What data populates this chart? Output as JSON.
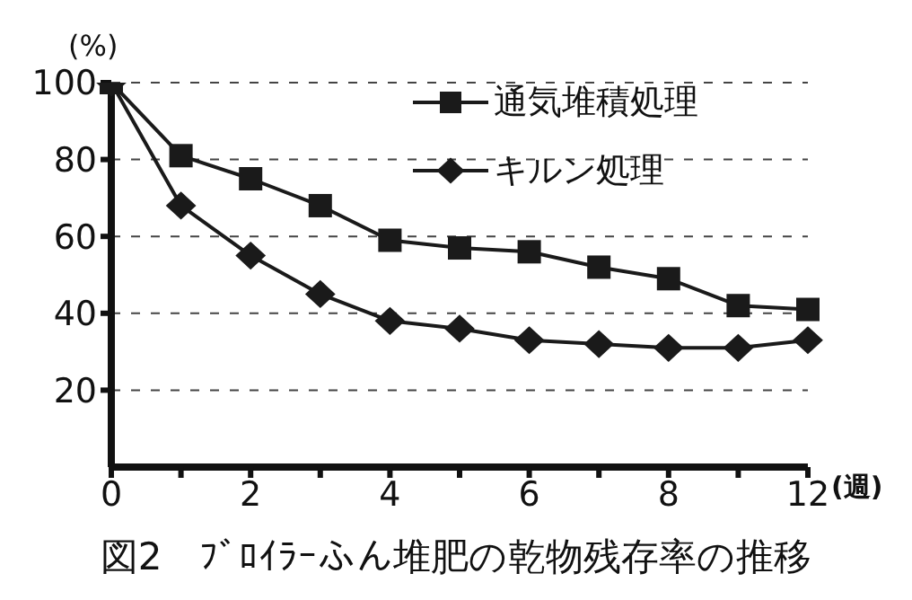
{
  "chart_data": {
    "type": "line",
    "title": "図2　ﾌﾞﾛｲﾗｰふん堆肥の乾物残存率の推移",
    "ylabel": "(%)",
    "xlabel": "(週)",
    "categories": [
      "0",
      null,
      "2",
      null,
      "4",
      null,
      "6",
      null,
      "8",
      null,
      "12"
    ],
    "series": [
      {
        "name": "通気堆積処理",
        "color": "#1a1a1a",
        "marker": "square",
        "values": [
          100,
          81,
          75,
          68,
          59,
          57,
          56,
          52,
          49,
          42,
          41
        ]
      },
      {
        "name": "キルン処理",
        "color": "#1a1a1a",
        "marker": "diamond",
        "values": [
          100,
          68,
          55,
          45,
          38,
          36,
          33,
          32,
          31,
          31,
          33
        ]
      }
    ],
    "ylim": [
      0,
      100
    ],
    "yticks": [
      20,
      40,
      60,
      80,
      100
    ],
    "grid": "y",
    "legend": "top right",
    "line_style": "solid"
  }
}
